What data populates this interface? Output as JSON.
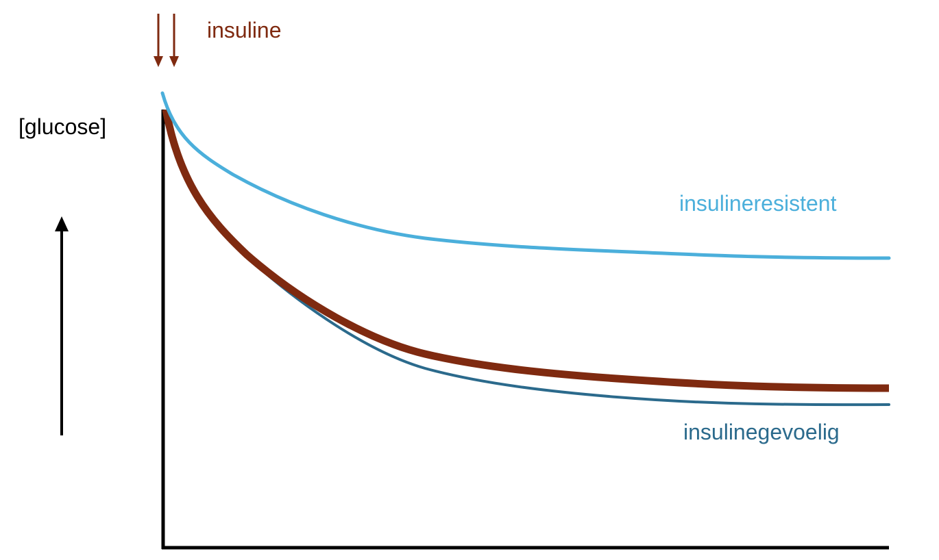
{
  "labels": {
    "insulin_label": "insuline",
    "y_axis_label": "[glucose]",
    "resistant_label": "insulineresistent",
    "sensitive_label": "insulinegevoelig"
  },
  "colors": {
    "insulin": "#7f2a10",
    "resistant": "#4bafdb",
    "sensitive": "#2b6a8c",
    "axis": "#000000"
  }
}
